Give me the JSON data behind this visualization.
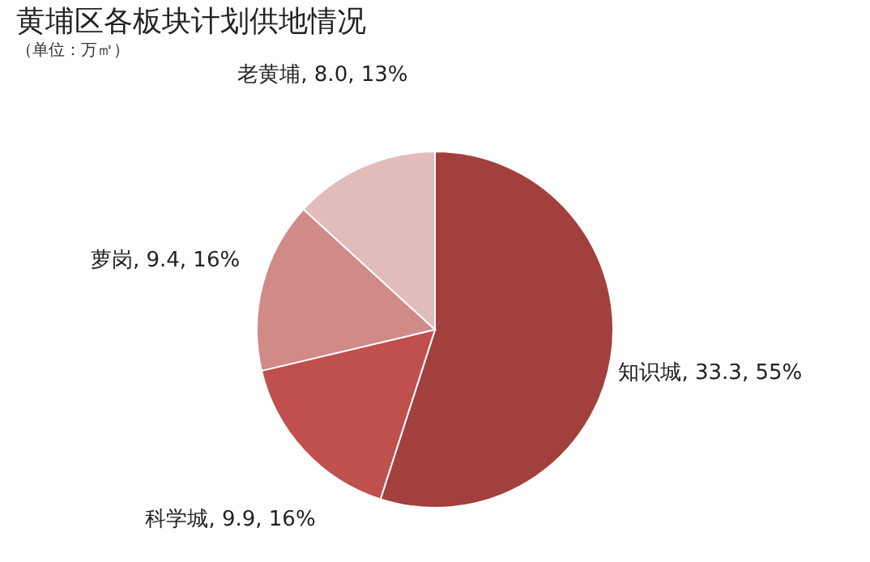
{
  "chart_data": {
    "type": "pie",
    "title": "黄埔区各板块计划供地情况",
    "subtitle": "（单位：万㎡）",
    "categories": [
      "知识城",
      "科学城",
      "萝岗",
      "老黄埔"
    ],
    "values": [
      33.3,
      9.9,
      9.4,
      8.0
    ],
    "value_labels": [
      "33.3, 55%",
      "9.9, 16%",
      "9.4, 16%",
      "8.0, 13%"
    ],
    "colors": [
      "#a2403e",
      "#c0504d",
      "#d08a88",
      "#e2bcbb"
    ],
    "legend": false
  }
}
